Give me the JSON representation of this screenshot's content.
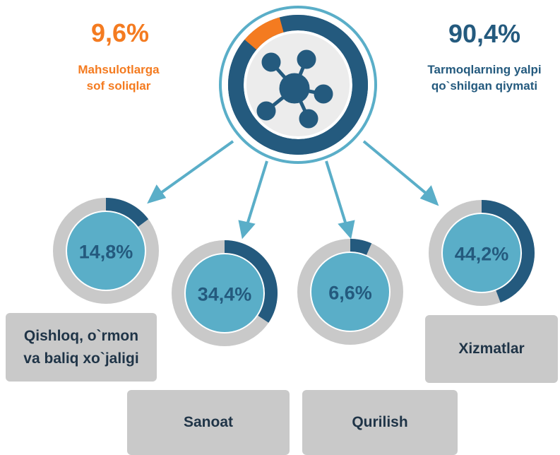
{
  "chart_data": [
    {
      "type": "donut",
      "categories": [
        "Mahsulotlarga\nsof soliqlar",
        "Tarmoqlarning yalpi\nqo`shilgan qiymati"
      ],
      "values": [
        9.6,
        90.4
      ],
      "value_labels": [
        "9,6%",
        "90,4%"
      ],
      "colors": [
        "#f47b20",
        "#245a7e"
      ]
    },
    {
      "type": "donut",
      "title": "Qishloq, o`rmon\nva baliq xo`jaligi",
      "values": [
        14.8
      ],
      "value_labels": [
        "14,8%"
      ],
      "colors": [
        "#245a7e"
      ]
    },
    {
      "type": "donut",
      "title": "Sanoat",
      "values": [
        34.4
      ],
      "value_labels": [
        "34,4%"
      ],
      "colors": [
        "#245a7e"
      ]
    },
    {
      "type": "donut",
      "title": "Qurilish",
      "values": [
        6.6
      ],
      "value_labels": [
        "6,6%"
      ],
      "colors": [
        "#245a7e"
      ]
    },
    {
      "type": "donut",
      "title": "Xizmatlar",
      "values": [
        44.2
      ],
      "value_labels": [
        "44,2%"
      ],
      "colors": [
        "#245a7e"
      ]
    }
  ]
}
